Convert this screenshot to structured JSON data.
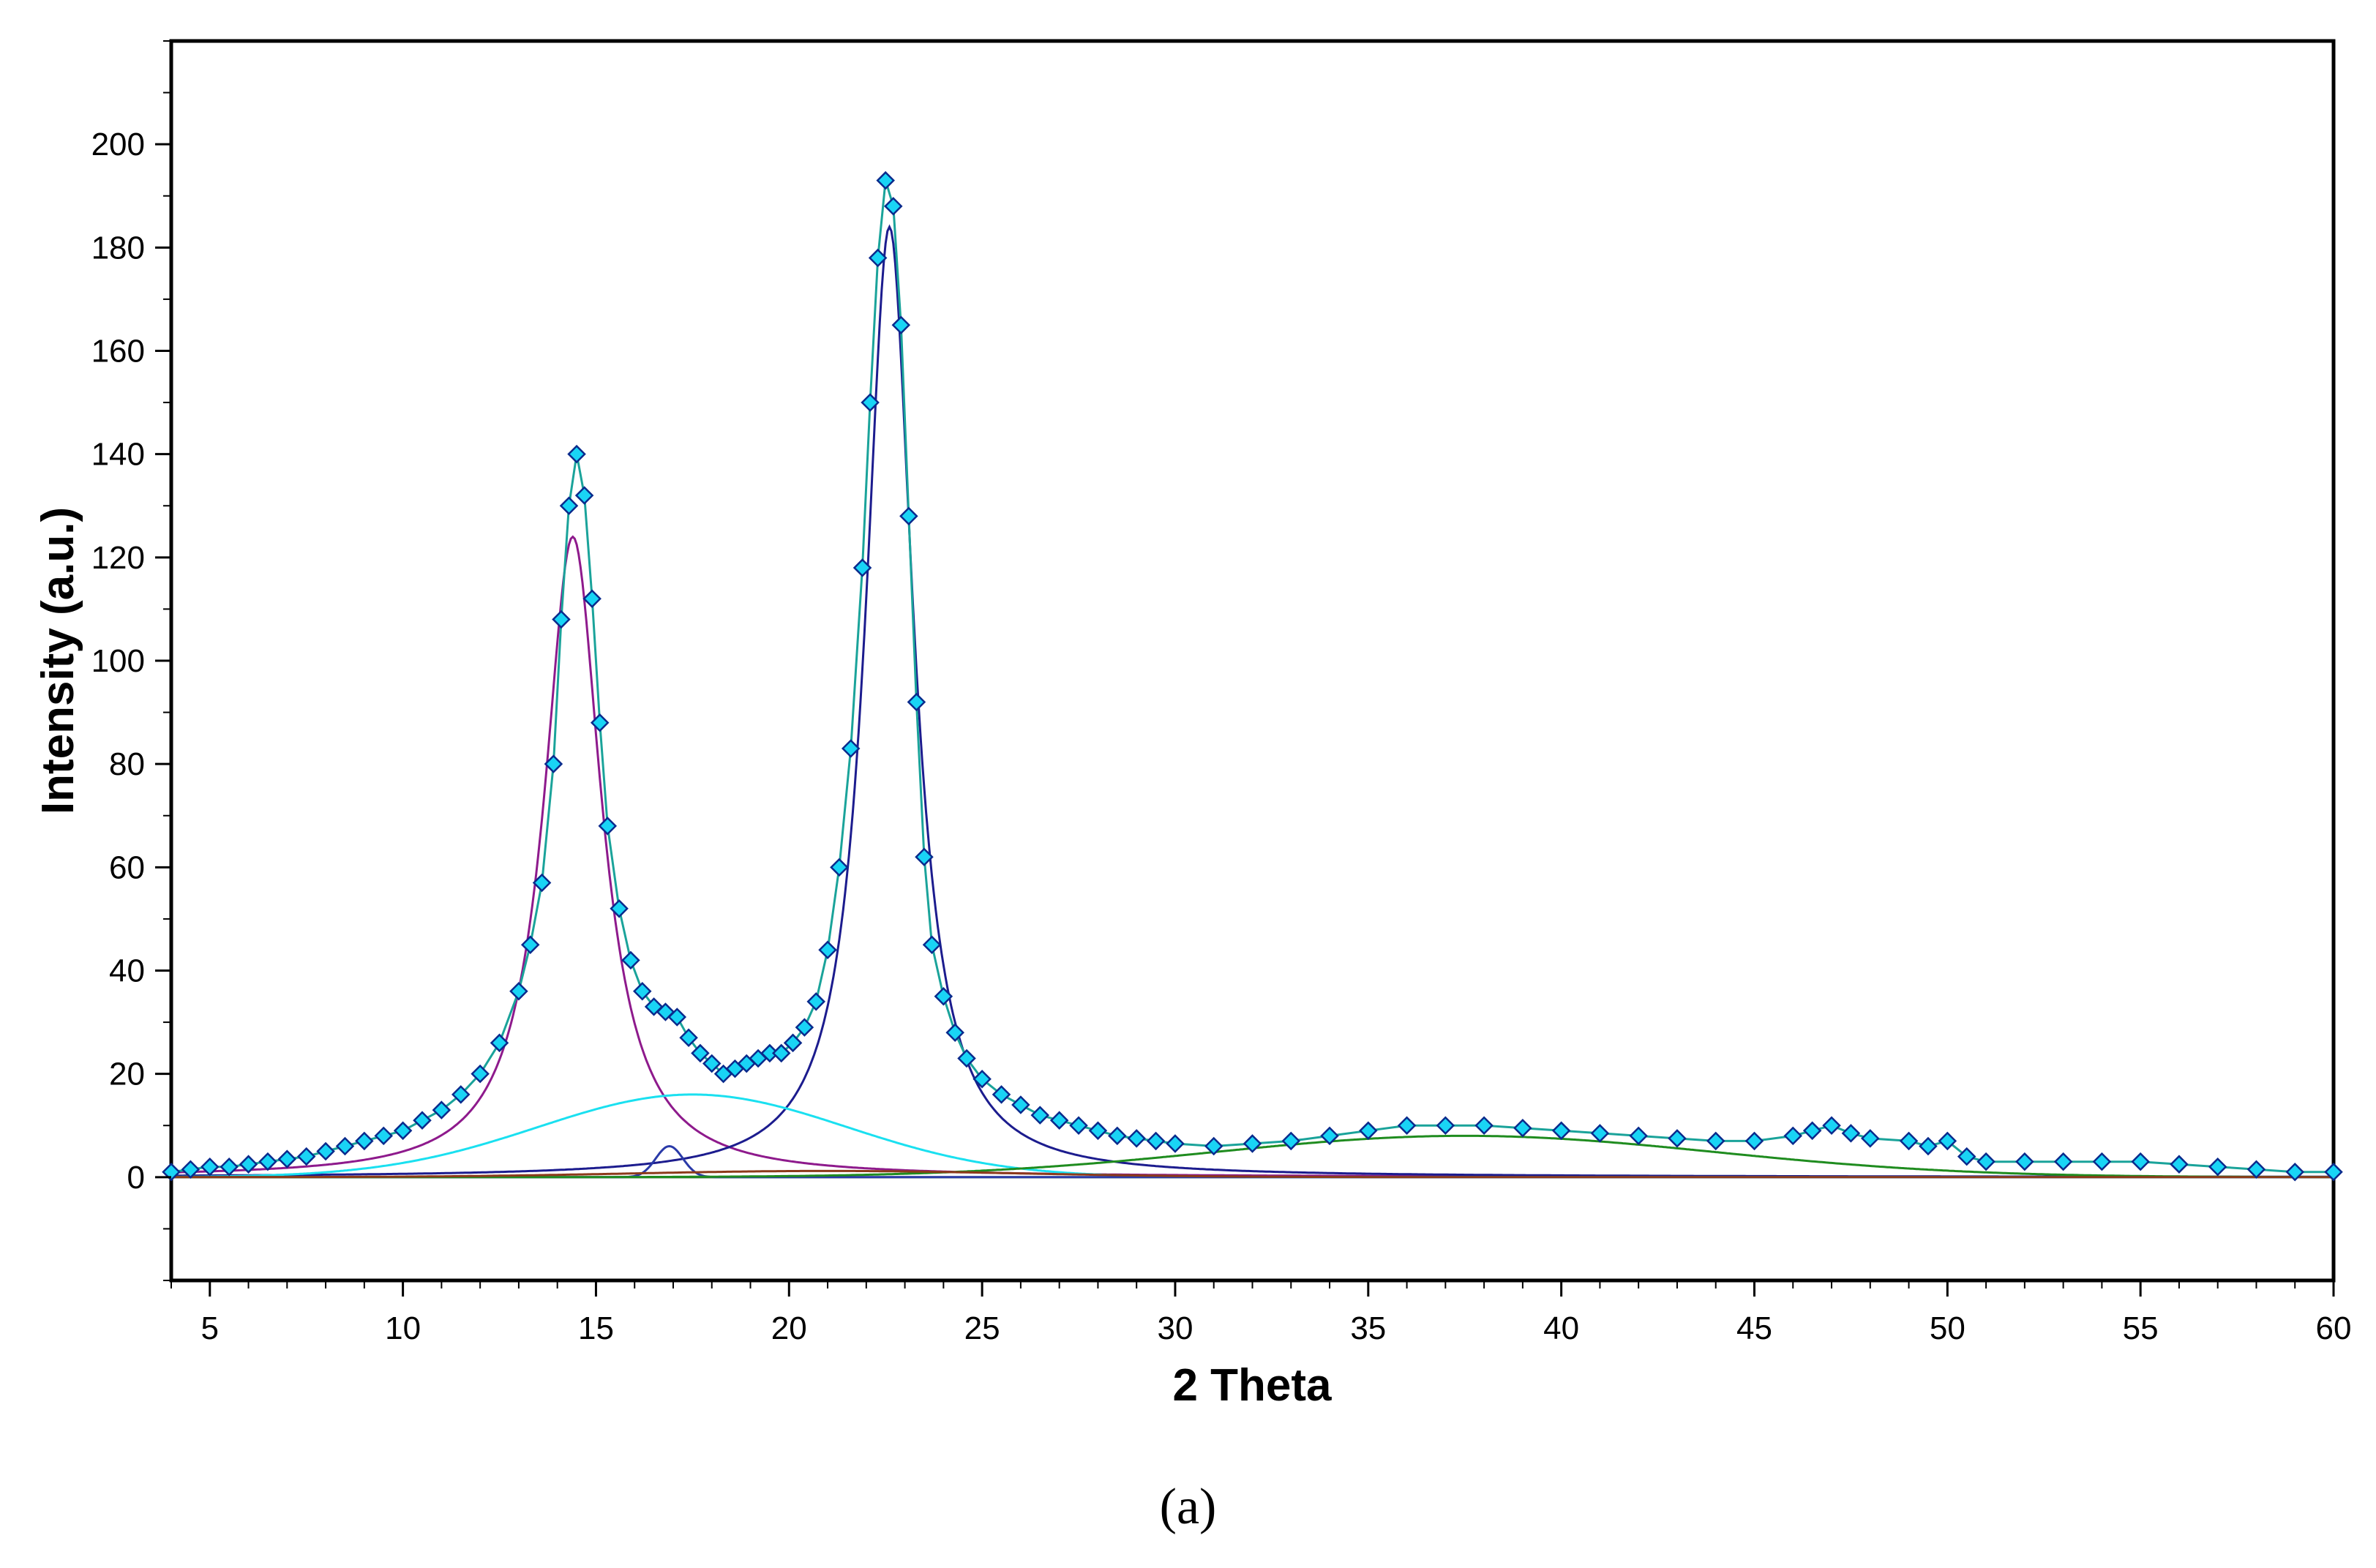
{
  "caption": "(a)",
  "chart_data": {
    "type": "line",
    "title": "",
    "xlabel": "2 Theta",
    "ylabel": "Intensity (a.u.)",
    "xlim": [
      4,
      60
    ],
    "ylim": [
      -20,
      220
    ],
    "xticks": [
      5,
      10,
      15,
      20,
      25,
      30,
      35,
      40,
      45,
      50,
      55,
      60
    ],
    "yticks": [
      0,
      20,
      40,
      60,
      80,
      100,
      120,
      140,
      160,
      180,
      200
    ],
    "grid": false,
    "legend": "none",
    "observed": {
      "marker": "diamond",
      "color": "#19d4f5",
      "edge_color": "#0a2a8c",
      "x": [
        4,
        4.5,
        5,
        5.5,
        6,
        6.5,
        7,
        7.5,
        8,
        8.5,
        9,
        9.5,
        10,
        10.5,
        11,
        11.5,
        12,
        12.5,
        13,
        13.3,
        13.6,
        13.9,
        14.1,
        14.3,
        14.5,
        14.7,
        14.9,
        15.1,
        15.3,
        15.6,
        15.9,
        16.2,
        16.5,
        16.8,
        17.1,
        17.4,
        17.7,
        18,
        18.3,
        18.6,
        18.9,
        19.2,
        19.5,
        19.8,
        20.1,
        20.4,
        20.7,
        21,
        21.3,
        21.6,
        21.9,
        22.1,
        22.3,
        22.5,
        22.7,
        22.9,
        23.1,
        23.3,
        23.5,
        23.7,
        24,
        24.3,
        24.6,
        25,
        25.5,
        26,
        26.5,
        27,
        27.5,
        28,
        28.5,
        29,
        29.5,
        30,
        31,
        32,
        33,
        34,
        35,
        36,
        37,
        38,
        39,
        40,
        41,
        42,
        43,
        44,
        45,
        46,
        46.5,
        47,
        47.5,
        48,
        49,
        49.5,
        50,
        50.5,
        51,
        52,
        53,
        54,
        55,
        56,
        57,
        58,
        59,
        60
      ],
      "y": [
        1,
        1.5,
        2,
        2,
        2.5,
        3,
        3.5,
        4,
        5,
        6,
        7,
        8,
        9,
        11,
        13,
        16,
        20,
        26,
        36,
        45,
        57,
        80,
        108,
        130,
        140,
        132,
        112,
        88,
        68,
        52,
        42,
        36,
        33,
        32,
        31,
        27,
        24,
        22,
        20,
        21,
        22,
        23,
        24,
        24,
        26,
        29,
        34,
        44,
        60,
        83,
        118,
        150,
        178,
        193,
        188,
        165,
        128,
        92,
        62,
        45,
        35,
        28,
        23,
        19,
        16,
        14,
        12,
        11,
        10,
        9,
        8,
        7.5,
        7,
        6.5,
        6,
        6.5,
        7,
        8,
        9,
        10,
        10,
        10,
        9.5,
        9,
        8.5,
        8,
        7.5,
        7,
        7,
        8,
        9,
        10,
        8.5,
        7.5,
        7,
        6,
        7,
        4,
        3,
        3,
        3,
        3,
        3,
        2.5,
        2,
        1.5,
        1,
        1
      ]
    },
    "fit_components": [
      {
        "color": "#1aa39a",
        "type": "total-fit"
      },
      {
        "color": "#8e1a8c",
        "type": "lorentzian",
        "center": 14.4,
        "height": 124,
        "hwhm": 0.9
      },
      {
        "color": "#1c1c8e",
        "type": "lorentzian",
        "center": 22.6,
        "height": 184,
        "hwhm": 0.75
      },
      {
        "color": "#1ae0f0",
        "type": "gaussian",
        "center": 17.5,
        "height": 16,
        "sigma": 4.0
      },
      {
        "color": "#2a3aa8",
        "type": "gaussian",
        "center": 16.9,
        "height": 6,
        "sigma": 0.35
      },
      {
        "color": "#1f8c1f",
        "type": "gaussian",
        "center": 37.5,
        "height": 8,
        "sigma": 6.5
      },
      {
        "color": "#8c3a1a",
        "type": "gaussian",
        "center": 21.0,
        "height": 1.2,
        "sigma": 5.0
      }
    ]
  }
}
